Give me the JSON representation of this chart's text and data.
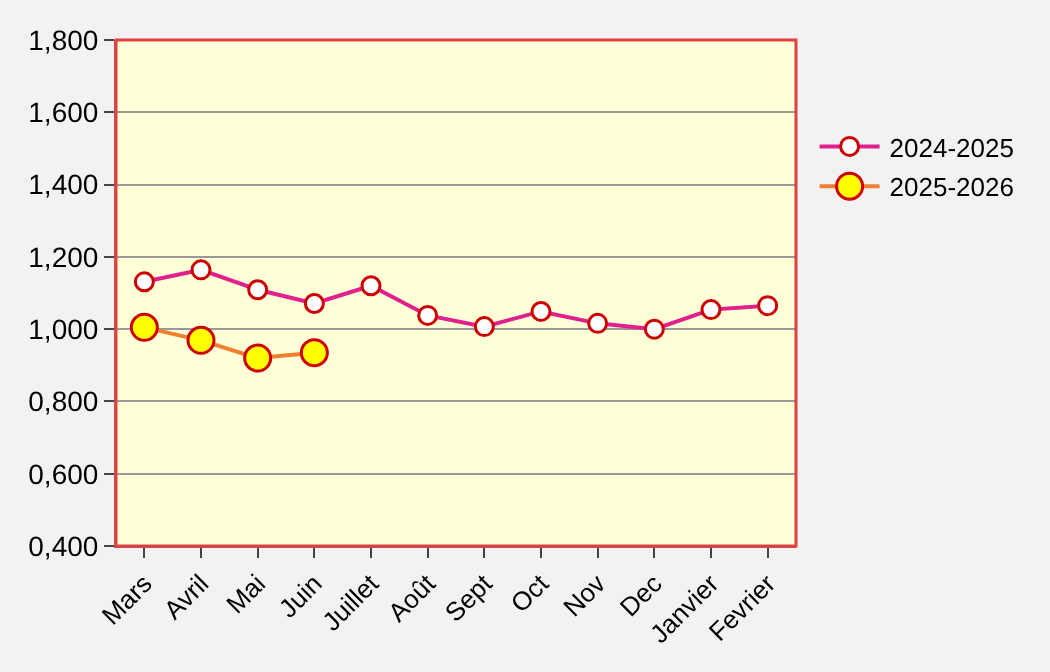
{
  "chart_data": {
    "type": "line",
    "categories": [
      "Mars",
      "Avril",
      "Mai",
      "Juin",
      "Juillet",
      "Août",
      "Sept",
      "Oct",
      "Nov",
      "Dec",
      "Janvier",
      "Fevrier"
    ],
    "series": [
      {
        "name": "2024-2025",
        "color": "#e0208c",
        "values": [
          1.131,
          1.164,
          1.109,
          1.071,
          1.12,
          1.038,
          1.007,
          1.049,
          1.016,
          1.0,
          1.054,
          1.065
        ]
      },
      {
        "name": "2025-2026",
        "color": "#f08030",
        "values": [
          1.005,
          0.969,
          0.92,
          0.935,
          null,
          null,
          null,
          null,
          null,
          null,
          null,
          null
        ]
      }
    ],
    "ylim": [
      0.4,
      1.8
    ],
    "yticks": [
      {
        "value": 0.4,
        "label": "0,400"
      },
      {
        "value": 0.6,
        "label": "0,600"
      },
      {
        "value": 0.8,
        "label": "0,800"
      },
      {
        "value": 1.0,
        "label": "1,000"
      },
      {
        "value": 1.2,
        "label": "1,200"
      },
      {
        "value": 1.4,
        "label": "1,400"
      },
      {
        "value": 1.6,
        "label": "1,600"
      },
      {
        "value": 1.8,
        "label": "1,800"
      }
    ],
    "grid": "y",
    "legend": "right",
    "marker": "circle",
    "line_style": "solid"
  }
}
